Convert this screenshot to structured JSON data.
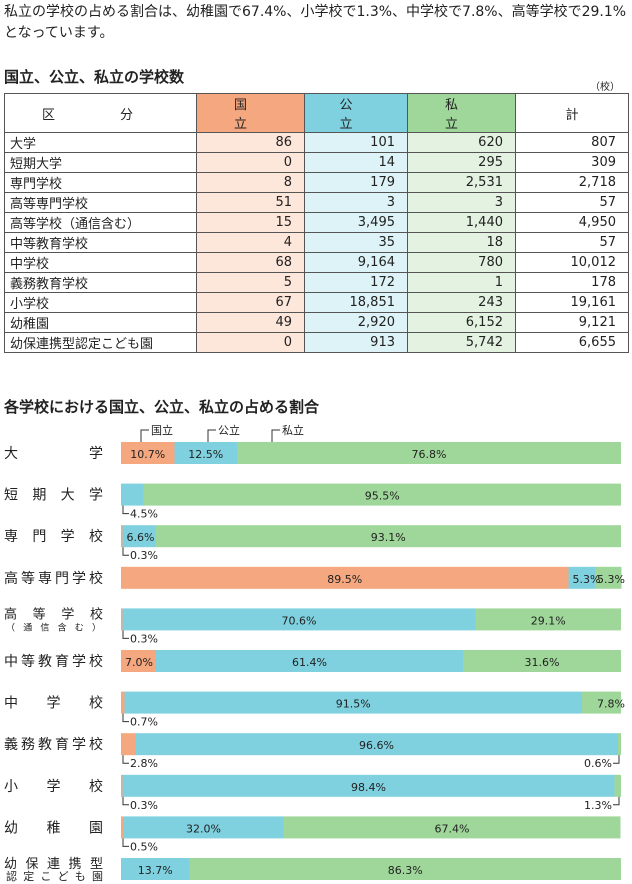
{
  "intro": "私立の学校の占める割合は、幼稚園で67.4%、小学校で1.3%、中学校で7.8%、高等学校で29.1%となっています。",
  "table": {
    "title": "国立、公立、私立の学校数",
    "unit": "（校）",
    "headers": [
      "区　分",
      "国　立",
      "公　立",
      "私　立",
      "計"
    ],
    "rows": [
      [
        "大学",
        "86",
        "101",
        "620",
        "807"
      ],
      [
        "短期大学",
        "0",
        "14",
        "295",
        "309"
      ],
      [
        "専門学校",
        "8",
        "179",
        "2,531",
        "2,718"
      ],
      [
        "高等専門学校",
        "51",
        "3",
        "3",
        "57"
      ],
      [
        "高等学校（通信含む）",
        "15",
        "3,495",
        "1,440",
        "4,950"
      ],
      [
        "中等教育学校",
        "4",
        "35",
        "18",
        "57"
      ],
      [
        "中学校",
        "68",
        "9,164",
        "780",
        "10,012"
      ],
      [
        "義務教育学校",
        "5",
        "172",
        "1",
        "178"
      ],
      [
        "小学校",
        "67",
        "18,851",
        "243",
        "19,161"
      ],
      [
        "幼稚園",
        "49",
        "2,920",
        "6,152",
        "9,121"
      ],
      [
        "幼保連携型認定こども園",
        "0",
        "913",
        "5,742",
        "6,655"
      ]
    ]
  },
  "chart_data": {
    "type": "bar",
    "orientation": "horizontal-stacked-100",
    "title": "各学校における国立、公立、私立の占める割合",
    "legend": [
      "国立",
      "公立",
      "私立"
    ],
    "colors": {
      "national": "#f5a77f",
      "public": "#7fd1e0",
      "private": "#9fd79a"
    },
    "categories": [
      {
        "label": "大　　学",
        "national": 10.7,
        "public": 12.5,
        "private": 76.8,
        "labels": {
          "national": "10.7%",
          "public": "12.5%",
          "private": "76.8%"
        },
        "below_left": "",
        "below_right": ""
      },
      {
        "label": "短期大学",
        "national": 0,
        "public": 4.5,
        "private": 95.5,
        "labels": {
          "national": "",
          "public": "",
          "private": "95.5%"
        },
        "below_left": "4.5%",
        "below_right": ""
      },
      {
        "label": "専門学校",
        "national": 0.3,
        "public": 6.6,
        "private": 93.1,
        "labels": {
          "national": "",
          "public": "6.6%",
          "private": "93.1%"
        },
        "below_left": "0.3%",
        "below_right": ""
      },
      {
        "label": "高等専門学校",
        "national": 89.5,
        "public": 5.3,
        "private": 5.3,
        "labels": {
          "national": "89.5%",
          "public": "5.3%",
          "private": "5.3%"
        },
        "below_left": "",
        "below_right": ""
      },
      {
        "label": "高等学校",
        "sublabel": "（通信含む）",
        "national": 0.3,
        "public": 70.6,
        "private": 29.1,
        "labels": {
          "national": "",
          "public": "70.6%",
          "private": "29.1%"
        },
        "below_left": "0.3%",
        "below_right": ""
      },
      {
        "label": "中等教育学校",
        "national": 7.0,
        "public": 61.4,
        "private": 31.6,
        "labels": {
          "national": "7.0%",
          "public": "61.4%",
          "private": "31.6%"
        },
        "below_left": "",
        "below_right": ""
      },
      {
        "label": "中学校",
        "national": 0.7,
        "public": 91.5,
        "private": 7.8,
        "labels": {
          "national": "",
          "public": "91.5%",
          "private": "7.8%"
        },
        "below_left": "0.7%",
        "below_right": ""
      },
      {
        "label": "義務教育学校",
        "national": 2.8,
        "public": 96.6,
        "private": 0.6,
        "labels": {
          "national": "",
          "public": "96.6%",
          "private": ""
        },
        "below_left": "2.8%",
        "below_right": "0.6%"
      },
      {
        "label": "小学校",
        "national": 0.3,
        "public": 98.4,
        "private": 1.3,
        "labels": {
          "national": "",
          "public": "98.4%",
          "private": ""
        },
        "below_left": "0.3%",
        "below_right": "1.3%"
      },
      {
        "label": "幼稚園",
        "national": 0.5,
        "public": 32.0,
        "private": 67.4,
        "labels": {
          "national": "",
          "public": "32.0%",
          "private": "67.4%"
        },
        "below_left": "0.5%",
        "below_right": ""
      },
      {
        "label": "幼保連携型",
        "sublabel": "認定こども園",
        "national": 0,
        "public": 13.7,
        "private": 86.3,
        "labels": {
          "national": "",
          "public": "13.7%",
          "private": "86.3%"
        },
        "below_left": "",
        "below_right": ""
      }
    ]
  }
}
